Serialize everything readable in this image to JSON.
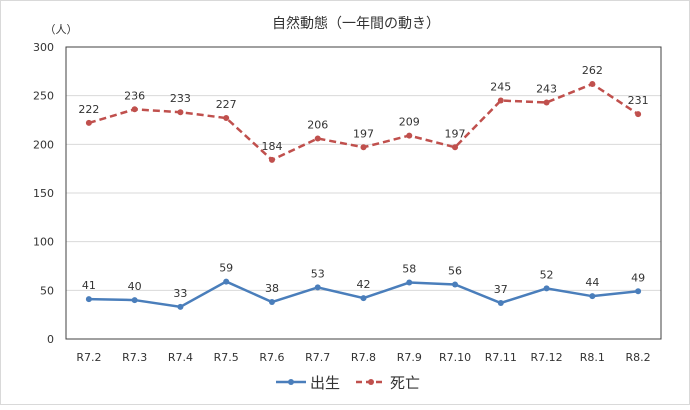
{
  "chart_data": {
    "type": "line",
    "title": "自然動態（一年間の動き）",
    "ylabel": "（人）",
    "xlabel": "",
    "ylim": [
      0,
      300
    ],
    "yticks": [
      0,
      50,
      100,
      150,
      200,
      250,
      300
    ],
    "grid": true,
    "legend_position": "bottom",
    "categories": [
      "R7.2",
      "R7.3",
      "R7.4",
      "R7.5",
      "R7.6",
      "R7.7",
      "R7.8",
      "R7.9",
      "R7.10",
      "R7.11",
      "R7.12",
      "R8.1",
      "R8.2"
    ],
    "series": [
      {
        "name": "出生",
        "color": "#4a7ebb",
        "style": "solid",
        "values": [
          41,
          40,
          33,
          59,
          38,
          53,
          42,
          58,
          56,
          37,
          52,
          44,
          49
        ]
      },
      {
        "name": "死亡",
        "color": "#c0504d",
        "style": "dashed",
        "values": [
          222,
          236,
          233,
          227,
          184,
          206,
          197,
          209,
          197,
          245,
          243,
          262,
          231
        ]
      }
    ]
  }
}
